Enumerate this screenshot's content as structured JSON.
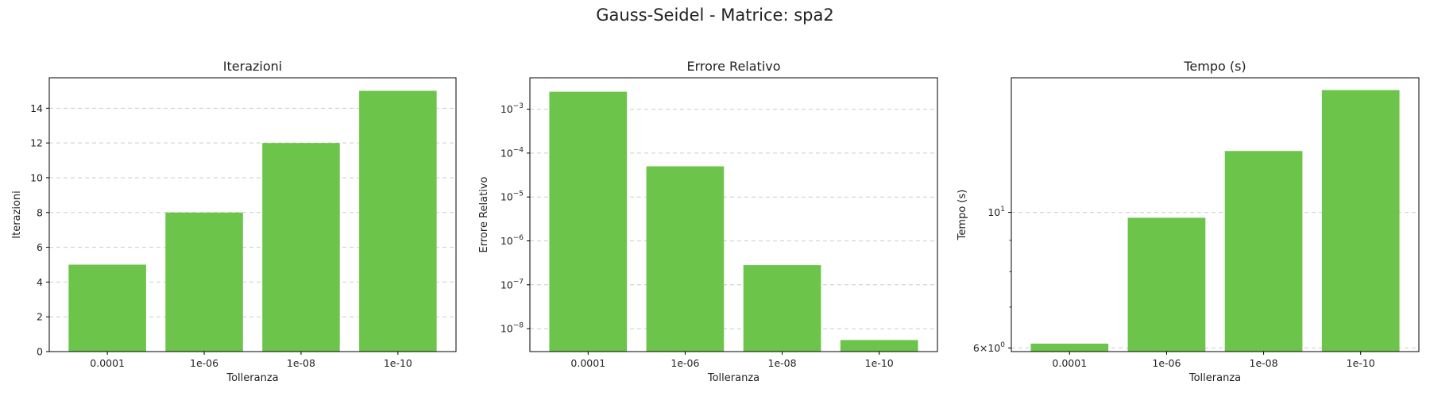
{
  "figure": {
    "title": "Gauss-Seidel - Matrice: spa2",
    "bar_color": "#6cc44a",
    "grid_color": "#cccccc"
  },
  "chart_data": [
    {
      "type": "bar",
      "title": "Iterazioni",
      "xlabel": "Tolleranza",
      "ylabel": "Iterazioni",
      "categories": [
        "0.0001",
        "1e-06",
        "1e-08",
        "1e-10"
      ],
      "values": [
        5,
        8,
        12,
        15
      ],
      "yscale": "linear",
      "ylim": [
        0,
        15.75
      ],
      "yticks": [
        0,
        2,
        4,
        6,
        8,
        10,
        12,
        14
      ],
      "grid": "y-dashed"
    },
    {
      "type": "bar",
      "title": "Errore Relativo",
      "xlabel": "Tolleranza",
      "ylabel": "Errore Relativo",
      "categories": [
        "0.0001",
        "1e-06",
        "1e-08",
        "1e-10"
      ],
      "values": [
        0.0025,
        5e-05,
        2.8e-07,
        5.5e-09
      ],
      "yscale": "log",
      "ylim": [
        3e-09,
        0.0052
      ],
      "yticks": [
        1e-08,
        1e-07,
        1e-06,
        1e-05,
        0.0001,
        0.001
      ],
      "ytick_base": "10",
      "ytick_exponents": [
        "−8",
        "−7",
        "−6",
        "−5",
        "−4",
        "−3"
      ],
      "grid": "y-dashed"
    },
    {
      "type": "bar",
      "title": "Tempo (s)",
      "xlabel": "Tolleranza",
      "ylabel": "Tempo (s)",
      "categories": [
        "0.0001",
        "1e-06",
        "1e-08",
        "1e-10"
      ],
      "values": [
        6.1,
        9.8,
        12.6,
        15.85
      ],
      "yscale": "log",
      "ylim": [
        5.92,
        16.6
      ],
      "yticks": [
        6,
        10
      ],
      "ytick_labels": [
        {
          "coef": "6",
          "base": "10",
          "exp": "0"
        },
        {
          "coef": "",
          "base": "10",
          "exp": "1"
        }
      ],
      "minor_yticks": [
        7,
        8,
        9
      ],
      "grid": "y-dashed"
    }
  ]
}
